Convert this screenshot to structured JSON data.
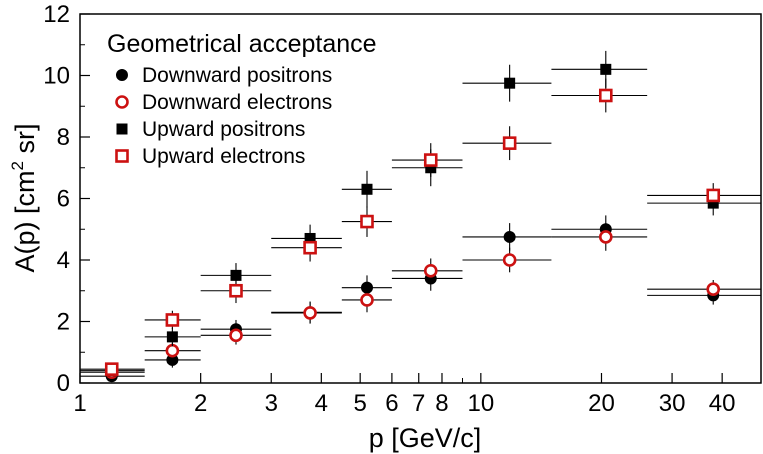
{
  "chart_data": {
    "type": "scatter",
    "x_scale": "log",
    "xlabel": "p  [GeV/c]",
    "ylabel_main": "A(p)  [cm",
    "ylabel_sup": "2",
    "ylabel_tail": " sr]",
    "xlim": [
      1,
      50
    ],
    "ylim": [
      0,
      12
    ],
    "x_ticks": [
      1,
      2,
      3,
      4,
      5,
      6,
      7,
      8,
      10,
      20,
      30,
      40
    ],
    "x_tick_labels": [
      "1",
      "2",
      "3",
      "4",
      "5",
      "6",
      "7",
      "8",
      "10",
      "20",
      "30",
      "40"
    ],
    "y_ticks": [
      0,
      2,
      4,
      6,
      8,
      10,
      12
    ],
    "y_tick_labels": [
      "0",
      "2",
      "4",
      "6",
      "8",
      "10",
      "12"
    ],
    "legend_title": "Geometrical acceptance",
    "legend_position": "top-left",
    "colors": {
      "black": "#000000",
      "red": "#cc1111"
    },
    "series": [
      {
        "name": "Downward positrons",
        "marker": "circle-filled",
        "color": "#000000",
        "points": [
          {
            "x": 1.2,
            "y": 0.22,
            "xmin": 1.0,
            "xmax": 1.45,
            "yerr": 0.12
          },
          {
            "x": 1.7,
            "y": 0.75,
            "xmin": 1.45,
            "xmax": 2.0,
            "yerr": 0.25
          },
          {
            "x": 2.45,
            "y": 1.75,
            "xmin": 2.0,
            "xmax": 3.0,
            "yerr": 0.3
          },
          {
            "x": 3.75,
            "y": 2.3,
            "xmin": 3.0,
            "xmax": 4.5,
            "yerr": 0.35
          },
          {
            "x": 5.2,
            "y": 3.1,
            "xmin": 4.5,
            "xmax": 6.0,
            "yerr": 0.4
          },
          {
            "x": 7.5,
            "y": 3.4,
            "xmin": 6.0,
            "xmax": 9.0,
            "yerr": 0.4
          },
          {
            "x": 11.8,
            "y": 4.75,
            "xmin": 9.0,
            "xmax": 15.0,
            "yerr": 0.45
          },
          {
            "x": 20.5,
            "y": 5.0,
            "xmin": 15.0,
            "xmax": 26.0,
            "yerr": 0.45
          },
          {
            "x": 38,
            "y": 2.85,
            "xmin": 26.0,
            "xmax": 50.0,
            "yerr": 0.3
          }
        ]
      },
      {
        "name": "Downward electrons",
        "marker": "circle-open",
        "color": "#cc1111",
        "points": [
          {
            "x": 1.2,
            "y": 0.35,
            "xmin": 1.0,
            "xmax": 1.45,
            "yerr": 0.12
          },
          {
            "x": 1.7,
            "y": 1.05,
            "xmin": 1.45,
            "xmax": 2.0,
            "yerr": 0.25
          },
          {
            "x": 2.45,
            "y": 1.55,
            "xmin": 2.0,
            "xmax": 3.0,
            "yerr": 0.3
          },
          {
            "x": 3.75,
            "y": 2.28,
            "xmin": 3.0,
            "xmax": 4.5,
            "yerr": 0.35
          },
          {
            "x": 5.2,
            "y": 2.7,
            "xmin": 4.5,
            "xmax": 6.0,
            "yerr": 0.4
          },
          {
            "x": 7.5,
            "y": 3.65,
            "xmin": 6.0,
            "xmax": 9.0,
            "yerr": 0.4
          },
          {
            "x": 11.8,
            "y": 4.0,
            "xmin": 9.0,
            "xmax": 15.0,
            "yerr": 0.4
          },
          {
            "x": 20.5,
            "y": 4.75,
            "xmin": 15.0,
            "xmax": 26.0,
            "yerr": 0.45
          },
          {
            "x": 38,
            "y": 3.05,
            "xmin": 26.0,
            "xmax": 50.0,
            "yerr": 0.3
          }
        ]
      },
      {
        "name": "Upward positrons",
        "marker": "square-filled",
        "color": "#000000",
        "points": [
          {
            "x": 1.2,
            "y": 0.4,
            "xmin": 1.0,
            "xmax": 1.45,
            "yerr": 0.15
          },
          {
            "x": 1.7,
            "y": 1.5,
            "xmin": 1.45,
            "xmax": 2.0,
            "yerr": 0.3
          },
          {
            "x": 2.45,
            "y": 3.5,
            "xmin": 2.0,
            "xmax": 3.0,
            "yerr": 0.4
          },
          {
            "x": 3.75,
            "y": 4.7,
            "xmin": 3.0,
            "xmax": 4.5,
            "yerr": 0.45
          },
          {
            "x": 5.2,
            "y": 6.3,
            "xmin": 4.5,
            "xmax": 6.0,
            "yerr": 0.6
          },
          {
            "x": 7.5,
            "y": 7.0,
            "xmin": 6.0,
            "xmax": 9.0,
            "yerr": 0.6
          },
          {
            "x": 11.8,
            "y": 9.75,
            "xmin": 9.0,
            "xmax": 15.0,
            "yerr": 0.6
          },
          {
            "x": 20.5,
            "y": 10.2,
            "xmin": 15.0,
            "xmax": 26.0,
            "yerr": 0.6
          },
          {
            "x": 38,
            "y": 5.85,
            "xmin": 26.0,
            "xmax": 50.0,
            "yerr": 0.4
          }
        ]
      },
      {
        "name": "Upward electrons",
        "marker": "square-open",
        "color": "#cc1111",
        "points": [
          {
            "x": 1.2,
            "y": 0.45,
            "xmin": 1.0,
            "xmax": 1.45,
            "yerr": 0.15
          },
          {
            "x": 1.7,
            "y": 2.05,
            "xmin": 1.45,
            "xmax": 2.0,
            "yerr": 0.3
          },
          {
            "x": 2.45,
            "y": 3.0,
            "xmin": 2.0,
            "xmax": 3.0,
            "yerr": 0.4
          },
          {
            "x": 3.75,
            "y": 4.4,
            "xmin": 3.0,
            "xmax": 4.5,
            "yerr": 0.45
          },
          {
            "x": 5.2,
            "y": 5.25,
            "xmin": 4.5,
            "xmax": 6.0,
            "yerr": 0.5
          },
          {
            "x": 7.5,
            "y": 7.25,
            "xmin": 6.0,
            "xmax": 9.0,
            "yerr": 0.55
          },
          {
            "x": 11.8,
            "y": 7.8,
            "xmin": 9.0,
            "xmax": 15.0,
            "yerr": 0.55
          },
          {
            "x": 20.5,
            "y": 9.35,
            "xmin": 15.0,
            "xmax": 26.0,
            "yerr": 0.55
          },
          {
            "x": 38,
            "y": 6.1,
            "xmin": 26.0,
            "xmax": 50.0,
            "yerr": 0.4
          }
        ]
      }
    ]
  }
}
